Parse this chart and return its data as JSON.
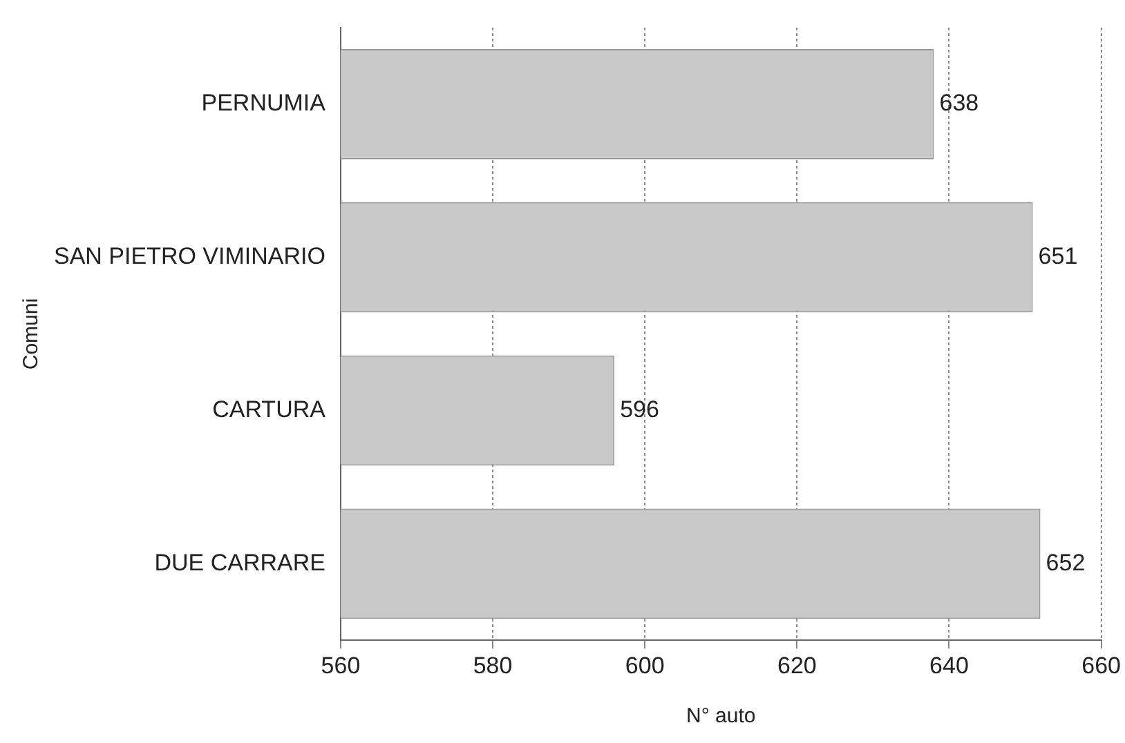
{
  "chart_data": {
    "type": "bar",
    "orientation": "horizontal",
    "xlabel": "N° auto",
    "ylabel": "Comuni",
    "categories": [
      "PERNUMIA",
      "SAN PIETRO VIMINARIO",
      "CARTURA",
      "DUE CARRARE"
    ],
    "values": [
      638,
      651,
      596,
      652
    ],
    "color": "#c8c8c8",
    "xlim": [
      560,
      660
    ],
    "xticks": [
      560,
      580,
      600,
      620,
      640,
      660
    ],
    "grid": "x",
    "data_labels": true
  }
}
